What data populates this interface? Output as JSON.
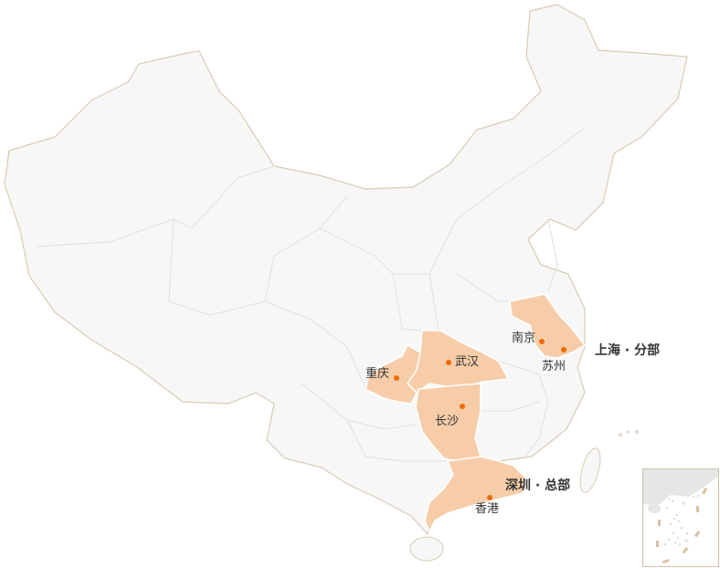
{
  "map": {
    "colors": {
      "land": "#f7f7f7",
      "border": "#d9cbb4",
      "inner_border": "#e2e2e2",
      "highlight": "#f6cda8",
      "city_dot": "#ee6b08",
      "text": "#333333"
    },
    "highlighted_regions": [
      "江苏/上海",
      "湖北",
      "重庆",
      "湖南",
      "广东"
    ],
    "cities": [
      {
        "name": "南京"
      },
      {
        "name": "苏州"
      },
      {
        "name": "武汉"
      },
      {
        "name": "重庆"
      },
      {
        "name": "长沙"
      },
      {
        "name": "香港"
      }
    ],
    "offices": [
      {
        "label": "上海 · 分部"
      },
      {
        "label": "深圳 · 总部"
      }
    ],
    "inset": "south-china-sea-islands"
  }
}
